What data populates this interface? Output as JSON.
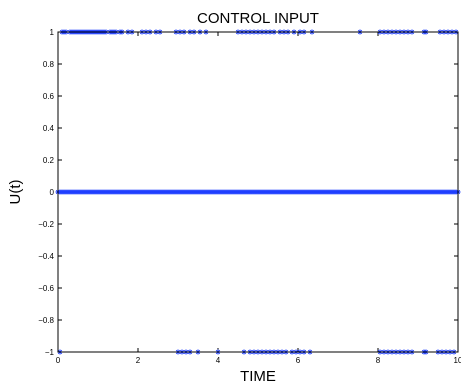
{
  "chart_data": {
    "type": "scatter",
    "title": "CONTROL INPUT",
    "xlabel": "TIME",
    "ylabel": "U(t)",
    "xlim": [
      0,
      10
    ],
    "ylim": [
      -1,
      1
    ],
    "x_ticks": [
      "0",
      "2",
      "4",
      "6",
      "8",
      "10"
    ],
    "x_tick_values": [
      0,
      2,
      4,
      6,
      8,
      10
    ],
    "y_ticks": [
      "−1",
      "−0.8",
      "−0.6",
      "−0.4",
      "−0.2",
      "0",
      "0.2",
      "0.4",
      "0.6",
      "0.8",
      "1"
    ],
    "y_tick_values": [
      -1,
      -0.8,
      -0.6,
      -0.4,
      -0.2,
      0,
      0.2,
      0.4,
      0.6,
      0.8,
      1
    ],
    "grid": false,
    "marker": "asterisk",
    "color": "#1f3fff",
    "series": [
      {
        "x": [
          0.1,
          0.15,
          0.2,
          0.3,
          0.35,
          0.4,
          0.45,
          0.5,
          0.55,
          0.6,
          0.65,
          0.7,
          0.75,
          0.8,
          0.85,
          0.9,
          0.95,
          1.0,
          1.05,
          1.1,
          1.15,
          1.2,
          1.3,
          1.35,
          1.4,
          1.45,
          1.55,
          1.6,
          1.75,
          1.85,
          2.1,
          2.2,
          2.3,
          2.45,
          2.55,
          2.95,
          3.05,
          3.15,
          3.3,
          3.4,
          3.55,
          3.7,
          4.5,
          4.6,
          4.7,
          4.8,
          4.9,
          5.0,
          5.1,
          5.2,
          5.3,
          5.4,
          5.55,
          5.65,
          5.75,
          5.9,
          6.05,
          6.15,
          6.35,
          7.55,
          8.05,
          8.15,
          8.25,
          8.35,
          8.45,
          8.55,
          8.65,
          8.75,
          8.85,
          9.15,
          9.2,
          9.55,
          9.65,
          9.75,
          9.85,
          9.95
        ],
        "y": [
          1,
          1,
          1,
          1,
          1,
          1,
          1,
          1,
          1,
          1,
          1,
          1,
          1,
          1,
          1,
          1,
          1,
          1,
          1,
          1,
          1,
          1,
          1,
          1,
          1,
          1,
          1,
          1,
          1,
          1,
          1,
          1,
          1,
          1,
          1,
          1,
          1,
          1,
          1,
          1,
          1,
          1,
          1,
          1,
          1,
          1,
          1,
          1,
          1,
          1,
          1,
          1,
          1,
          1,
          1,
          1,
          1,
          1,
          1,
          1,
          1,
          1,
          1,
          1,
          1,
          1,
          1,
          1,
          1,
          1,
          1,
          1,
          1,
          1,
          1,
          1
        ]
      },
      {
        "x": [
          0.0,
          0.05,
          0.1,
          0.15,
          0.2,
          0.25,
          0.3,
          0.35,
          0.4,
          0.45,
          0.5,
          0.55,
          0.6,
          0.65,
          0.7,
          0.75,
          0.8,
          0.85,
          0.9,
          0.95,
          1.0,
          1.05,
          1.1,
          1.15,
          1.2,
          1.25,
          1.3,
          1.35,
          1.4,
          1.45,
          1.5,
          1.55,
          1.6,
          1.65,
          1.7,
          1.75,
          1.8,
          1.85,
          1.9,
          1.95,
          2.0,
          2.05,
          2.1,
          2.15,
          2.2,
          2.25,
          2.3,
          2.35,
          2.4,
          2.45,
          2.5,
          2.55,
          2.6,
          2.65,
          2.7,
          2.75,
          2.8,
          2.85,
          2.9,
          2.95,
          3.0,
          3.05,
          3.1,
          3.15,
          3.2,
          3.25,
          3.3,
          3.35,
          3.4,
          3.45,
          3.5,
          3.55,
          3.6,
          3.65,
          3.7,
          3.75,
          3.8,
          3.85,
          3.9,
          3.95,
          4.0,
          4.05,
          4.1,
          4.15,
          4.2,
          4.25,
          4.3,
          4.35,
          4.4,
          4.45,
          4.5,
          4.55,
          4.6,
          4.65,
          4.7,
          4.75,
          4.8,
          4.85,
          4.9,
          4.95,
          5.0,
          5.05,
          5.1,
          5.15,
          5.2,
          5.25,
          5.3,
          5.35,
          5.4,
          5.45,
          5.5,
          5.55,
          5.6,
          5.65,
          5.7,
          5.75,
          5.8,
          5.85,
          5.9,
          5.95,
          6.0,
          6.05,
          6.1,
          6.15,
          6.2,
          6.25,
          6.3,
          6.35,
          6.4,
          6.45,
          6.5,
          6.55,
          6.6,
          6.65,
          6.7,
          6.75,
          6.8,
          6.85,
          6.9,
          6.95,
          7.0,
          7.05,
          7.1,
          7.15,
          7.2,
          7.25,
          7.3,
          7.35,
          7.4,
          7.45,
          7.5,
          7.55,
          7.6,
          7.65,
          7.7,
          7.75,
          7.8,
          7.85,
          7.9,
          7.95,
          8.0,
          8.05,
          8.1,
          8.15,
          8.2,
          8.25,
          8.3,
          8.35,
          8.4,
          8.45,
          8.5,
          8.55,
          8.6,
          8.65,
          8.7,
          8.75,
          8.8,
          8.85,
          8.9,
          8.95,
          9.0,
          9.05,
          9.1,
          9.15,
          9.2,
          9.25,
          9.3,
          9.35,
          9.4,
          9.45,
          9.5,
          9.55,
          9.6,
          9.65,
          9.7,
          9.75,
          9.8,
          9.85,
          9.9,
          9.95,
          10.0
        ],
        "y": [
          0,
          0,
          0,
          0,
          0,
          0,
          0,
          0,
          0,
          0,
          0,
          0,
          0,
          0,
          0,
          0,
          0,
          0,
          0,
          0,
          0,
          0,
          0,
          0,
          0,
          0,
          0,
          0,
          0,
          0,
          0,
          0,
          0,
          0,
          0,
          0,
          0,
          0,
          0,
          0,
          0,
          0,
          0,
          0,
          0,
          0,
          0,
          0,
          0,
          0,
          0,
          0,
          0,
          0,
          0,
          0,
          0,
          0,
          0,
          0,
          0,
          0,
          0,
          0,
          0,
          0,
          0,
          0,
          0,
          0,
          0,
          0,
          0,
          0,
          0,
          0,
          0,
          0,
          0,
          0,
          0,
          0,
          0,
          0,
          0,
          0,
          0,
          0,
          0,
          0,
          0,
          0,
          0,
          0,
          0,
          0,
          0,
          0,
          0,
          0,
          0,
          0,
          0,
          0,
          0,
          0,
          0,
          0,
          0,
          0,
          0,
          0,
          0,
          0,
          0,
          0,
          0,
          0,
          0,
          0,
          0,
          0,
          0,
          0,
          0,
          0,
          0,
          0,
          0,
          0,
          0,
          0,
          0,
          0,
          0,
          0,
          0,
          0,
          0,
          0,
          0,
          0,
          0,
          0,
          0,
          0,
          0,
          0,
          0,
          0,
          0,
          0,
          0,
          0,
          0,
          0,
          0,
          0,
          0,
          0,
          0,
          0,
          0,
          0,
          0,
          0,
          0,
          0,
          0,
          0,
          0,
          0,
          0,
          0,
          0,
          0,
          0,
          0,
          0,
          0,
          0,
          0,
          0,
          0,
          0,
          0,
          0,
          0,
          0,
          0,
          0,
          0,
          0,
          0,
          0,
          0,
          0,
          0,
          0,
          0,
          0
        ]
      },
      {
        "x": [
          0.05,
          3.0,
          3.1,
          3.2,
          3.3,
          3.5,
          4.0,
          4.65,
          4.8,
          4.9,
          5.0,
          5.1,
          5.2,
          5.3,
          5.4,
          5.5,
          5.6,
          5.7,
          5.85,
          5.95,
          6.05,
          6.15,
          6.3,
          8.05,
          8.15,
          8.25,
          8.35,
          8.45,
          8.55,
          8.65,
          8.75,
          8.85,
          9.15,
          9.2,
          9.5,
          9.6,
          9.7,
          9.8,
          9.9
        ],
        "y": [
          -1,
          -1,
          -1,
          -1,
          -1,
          -1,
          -1,
          -1,
          -1,
          -1,
          -1,
          -1,
          -1,
          -1,
          -1,
          -1,
          -1,
          -1,
          -1,
          -1,
          -1,
          -1,
          -1,
          -1,
          -1,
          -1,
          -1,
          -1,
          -1,
          -1,
          -1,
          -1,
          -1,
          -1,
          -1,
          -1,
          -1,
          -1,
          -1
        ]
      }
    ]
  }
}
